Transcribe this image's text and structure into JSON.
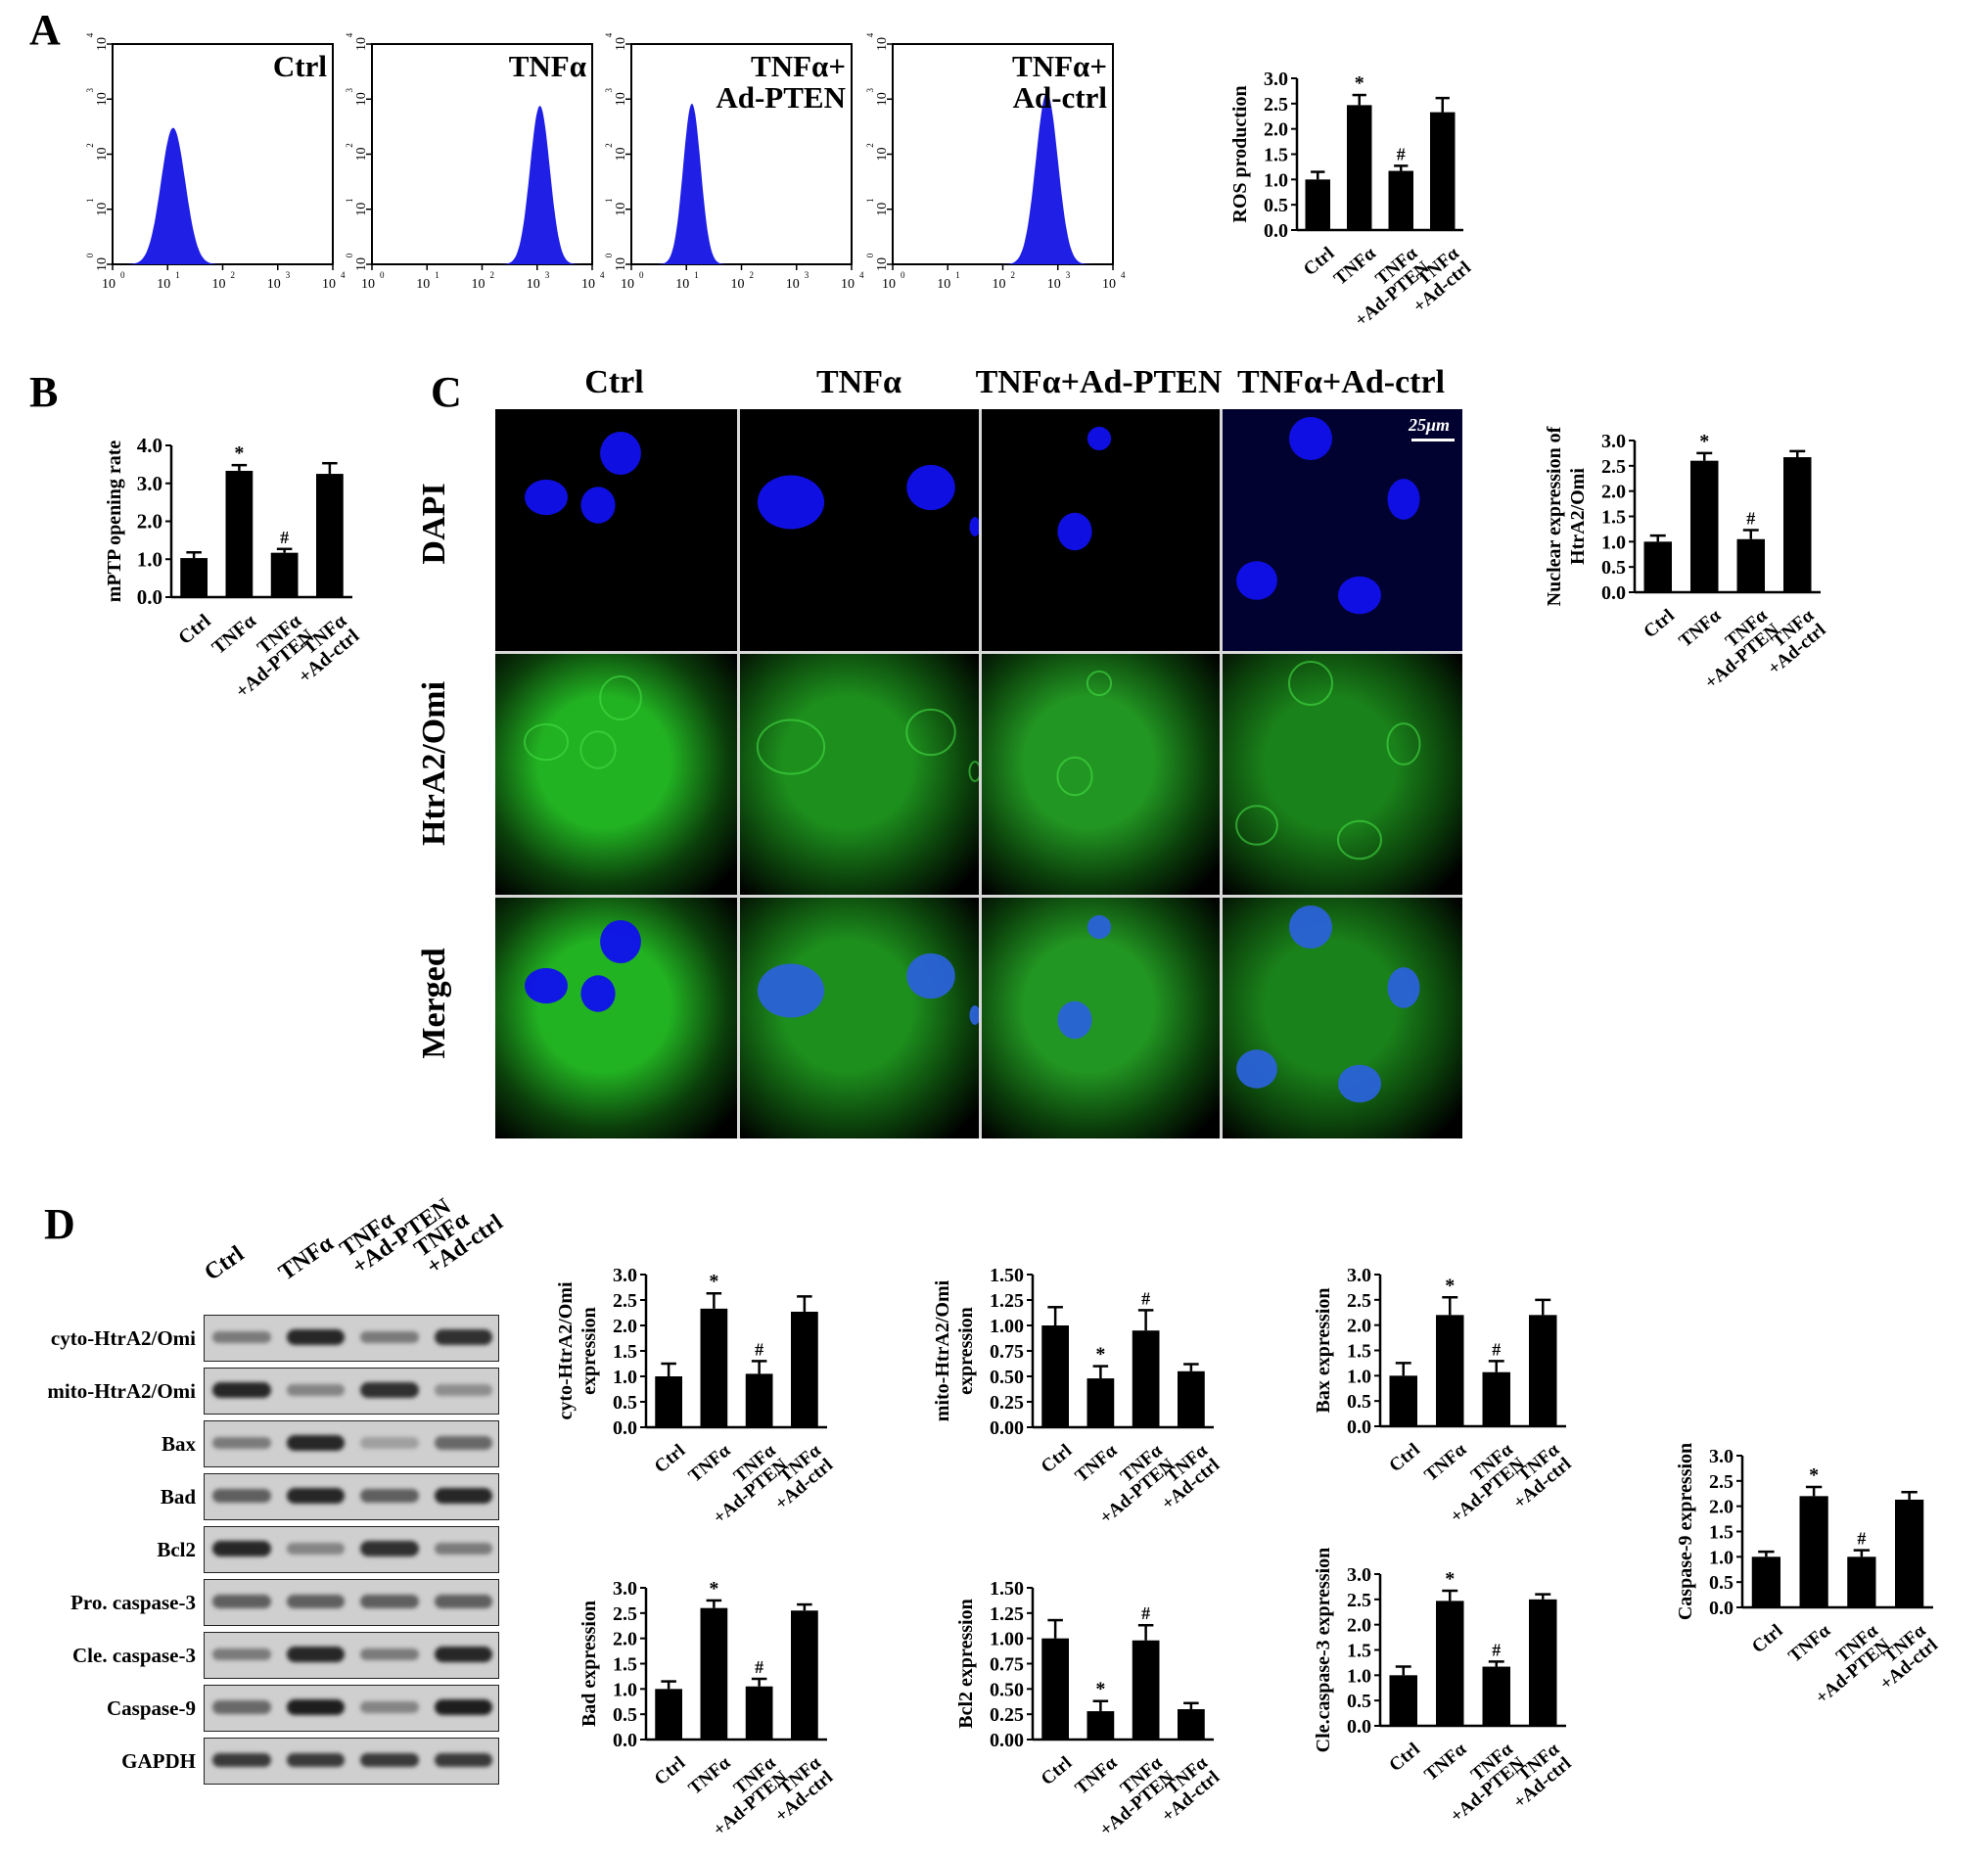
{
  "panels": {
    "A": "A",
    "B": "B",
    "C": "C",
    "D": "D"
  },
  "flow": {
    "x_ticks": [
      "10",
      "10",
      "10",
      "10",
      "10"
    ],
    "x_exps": [
      "0",
      "1",
      "2",
      "3",
      "4"
    ],
    "y_ticks": [
      "10",
      "10",
      "10",
      "10",
      "10"
    ],
    "y_exps": [
      "0",
      "1",
      "2",
      "3",
      "4"
    ],
    "plots": [
      {
        "label1": "Ctrl",
        "label2": "",
        "peak_log": 1.1,
        "width": 0.22,
        "height": 0.62
      },
      {
        "label1": "TNFα",
        "label2": "",
        "peak_log": 3.05,
        "width": 0.18,
        "height": 0.72
      },
      {
        "label1": "TNFα+",
        "label2": "Ad-PTEN",
        "peak_log": 1.1,
        "width": 0.16,
        "height": 0.73
      },
      {
        "label1": "TNFα+",
        "label2": "Ad-ctrl",
        "peak_log": 2.8,
        "width": 0.2,
        "height": 0.78
      }
    ],
    "color": "#1f1fe6"
  },
  "micro": {
    "columns": [
      "Ctrl",
      "TNFα",
      "TNFα+Ad-PTEN",
      "TNFα+Ad-ctrl"
    ],
    "rows": [
      "DAPI",
      "HtrA2/Omi",
      "Merged"
    ],
    "scale_bar": "25μm"
  },
  "western": {
    "lanes": [
      "Ctrl",
      "TNFα",
      "TNFα\n+Ad-PTEN",
      "TNFα\n+Ad-ctrl"
    ],
    "rows": [
      "cyto-HtrA2/Omi",
      "mito-HtrA2/Omi",
      "Bax",
      "Bad",
      "Bcl2",
      "Pro. caspase-3",
      "Cle. caspase-3",
      "Caspase-9",
      "GAPDH"
    ],
    "intensity": [
      [
        0.45,
        0.9,
        0.45,
        0.85
      ],
      [
        0.9,
        0.4,
        0.85,
        0.35
      ],
      [
        0.45,
        0.9,
        0.25,
        0.55
      ],
      [
        0.6,
        0.9,
        0.6,
        0.9
      ],
      [
        0.9,
        0.4,
        0.85,
        0.45
      ],
      [
        0.6,
        0.6,
        0.6,
        0.6
      ],
      [
        0.45,
        0.9,
        0.45,
        0.9
      ],
      [
        0.55,
        0.95,
        0.4,
        0.95
      ],
      [
        0.8,
        0.8,
        0.8,
        0.8
      ]
    ]
  },
  "chart_data": [
    {
      "id": "ros",
      "type": "bar",
      "categories": [
        "Ctrl",
        "TNFα",
        "TNFα\n+Ad-PTEN",
        "TNFα\n+Ad-ctrl"
      ],
      "values": [
        1.0,
        2.47,
        1.17,
        2.33
      ],
      "errors": [
        0.15,
        0.2,
        0.1,
        0.28
      ],
      "marks": [
        "",
        "*",
        "#",
        ""
      ],
      "ylabel": "ROS production",
      "ylim": [
        0,
        3
      ],
      "yticks": [
        "0.0",
        "0.5",
        "1.0",
        "1.5",
        "2.0",
        "2.5",
        "3.0"
      ]
    },
    {
      "id": "mptp",
      "type": "bar",
      "categories": [
        "Ctrl",
        "TNFα",
        "TNFα\n+Ad-PTEN",
        "TNFα\n+Ad-ctrl"
      ],
      "values": [
        1.03,
        3.33,
        1.17,
        3.25
      ],
      "errors": [
        0.15,
        0.15,
        0.1,
        0.28
      ],
      "marks": [
        "",
        "*",
        "#",
        ""
      ],
      "ylabel": "mPTP opening rate",
      "ylim": [
        0,
        4
      ],
      "yticks": [
        "0.0",
        "1.0",
        "2.0",
        "3.0",
        "4.0"
      ]
    },
    {
      "id": "nuclear",
      "type": "bar",
      "categories": [
        "Ctrl",
        "TNFα",
        "TNFα\n+Ad-PTEN",
        "TNFα\n+Ad-ctrl"
      ],
      "values": [
        1.0,
        2.6,
        1.05,
        2.67
      ],
      "errors": [
        0.12,
        0.15,
        0.18,
        0.12
      ],
      "marks": [
        "",
        "*",
        "#",
        ""
      ],
      "ylabel": "Nuclear expression of",
      "ylabel2": "HtrA2/Omi",
      "ylim": [
        0,
        3
      ],
      "yticks": [
        "0.0",
        "0.5",
        "1.0",
        "1.5",
        "2.0",
        "2.5",
        "3.0"
      ]
    },
    {
      "id": "cyto",
      "type": "bar",
      "categories": [
        "Ctrl",
        "TNFα",
        "TNFα\n+Ad-PTEN",
        "TNFα\n+Ad-ctrl"
      ],
      "values": [
        1.0,
        2.33,
        1.05,
        2.27
      ],
      "errors": [
        0.25,
        0.3,
        0.25,
        0.3
      ],
      "marks": [
        "",
        "*",
        "#",
        ""
      ],
      "ylabel": "cyto-HtrA2/Omi",
      "ylabel2": "expression",
      "ylim": [
        0,
        3
      ],
      "yticks": [
        "0.0",
        "0.5",
        "1.0",
        "1.5",
        "2.0",
        "2.5",
        "3.0"
      ]
    },
    {
      "id": "mito",
      "type": "bar",
      "categories": [
        "Ctrl",
        "TNFα",
        "TNFα\n+Ad-PTEN",
        "TNFα\n+Ad-ctrl"
      ],
      "values": [
        1.0,
        0.48,
        0.95,
        0.55
      ],
      "errors": [
        0.18,
        0.12,
        0.2,
        0.07
      ],
      "marks": [
        "",
        "*",
        "#",
        ""
      ],
      "ylabel": "mito-HtrA2/Omi",
      "ylabel2": "expression",
      "ylim": [
        0,
        1.5
      ],
      "yticks": [
        "0.00",
        "0.25",
        "0.50",
        "0.75",
        "1.00",
        "1.25",
        "1.50"
      ]
    },
    {
      "id": "bax",
      "type": "bar",
      "categories": [
        "Ctrl",
        "TNFα",
        "TNFα\n+Ad-PTEN",
        "TNFα\n+Ad-ctrl"
      ],
      "values": [
        1.0,
        2.2,
        1.07,
        2.2
      ],
      "errors": [
        0.25,
        0.35,
        0.22,
        0.3
      ],
      "marks": [
        "",
        "*",
        "#",
        ""
      ],
      "ylabel": "Bax expression",
      "ylim": [
        0,
        3
      ],
      "yticks": [
        "0.0",
        "0.5",
        "1.0",
        "1.5",
        "2.0",
        "2.5",
        "3.0"
      ]
    },
    {
      "id": "casp9",
      "type": "bar",
      "categories": [
        "Ctrl",
        "TNFα",
        "TNFα\n+Ad-PTEN",
        "TNFα\n+Ad-ctrl"
      ],
      "values": [
        1.0,
        2.2,
        1.0,
        2.13
      ],
      "errors": [
        0.1,
        0.18,
        0.13,
        0.15
      ],
      "marks": [
        "",
        "*",
        "#",
        ""
      ],
      "ylabel": "Caspase-9 expression",
      "ylim": [
        0,
        3
      ],
      "yticks": [
        "0.0",
        "0.5",
        "1.0",
        "1.5",
        "2.0",
        "2.5",
        "3.0"
      ]
    },
    {
      "id": "bad",
      "type": "bar",
      "categories": [
        "Ctrl",
        "TNFα",
        "TNFα\n+Ad-PTEN",
        "TNFα\n+Ad-ctrl"
      ],
      "values": [
        1.0,
        2.6,
        1.05,
        2.55
      ],
      "errors": [
        0.15,
        0.15,
        0.15,
        0.12
      ],
      "marks": [
        "",
        "*",
        "#",
        ""
      ],
      "ylabel": "Bad expression",
      "ylim": [
        0,
        3
      ],
      "yticks": [
        "0.0",
        "0.5",
        "1.0",
        "1.5",
        "2.0",
        "2.5",
        "3.0"
      ]
    },
    {
      "id": "bcl2",
      "type": "bar",
      "categories": [
        "Ctrl",
        "TNFα",
        "TNFα\n+Ad-PTEN",
        "TNFα\n+Ad-ctrl"
      ],
      "values": [
        1.0,
        0.28,
        0.98,
        0.3
      ],
      "errors": [
        0.18,
        0.1,
        0.15,
        0.06
      ],
      "marks": [
        "",
        "*",
        "#",
        ""
      ],
      "ylabel": "Bcl2 expression",
      "ylim": [
        0,
        1.5
      ],
      "yticks": [
        "0.00",
        "0.25",
        "0.50",
        "0.75",
        "1.00",
        "1.25",
        "1.50"
      ]
    },
    {
      "id": "clecasp3",
      "type": "bar",
      "categories": [
        "Ctrl",
        "TNFα",
        "TNFα\n+Ad-PTEN",
        "TNFα\n+Ad-ctrl"
      ],
      "values": [
        1.0,
        2.47,
        1.17,
        2.5
      ],
      "errors": [
        0.17,
        0.2,
        0.1,
        0.1
      ],
      "marks": [
        "",
        "*",
        "#",
        ""
      ],
      "ylabel": "Cle.caspase-3  expression",
      "ylim": [
        0,
        3
      ],
      "yticks": [
        "0.0",
        "0.5",
        "1.0",
        "1.5",
        "2.0",
        "2.5",
        "3.0"
      ]
    }
  ]
}
